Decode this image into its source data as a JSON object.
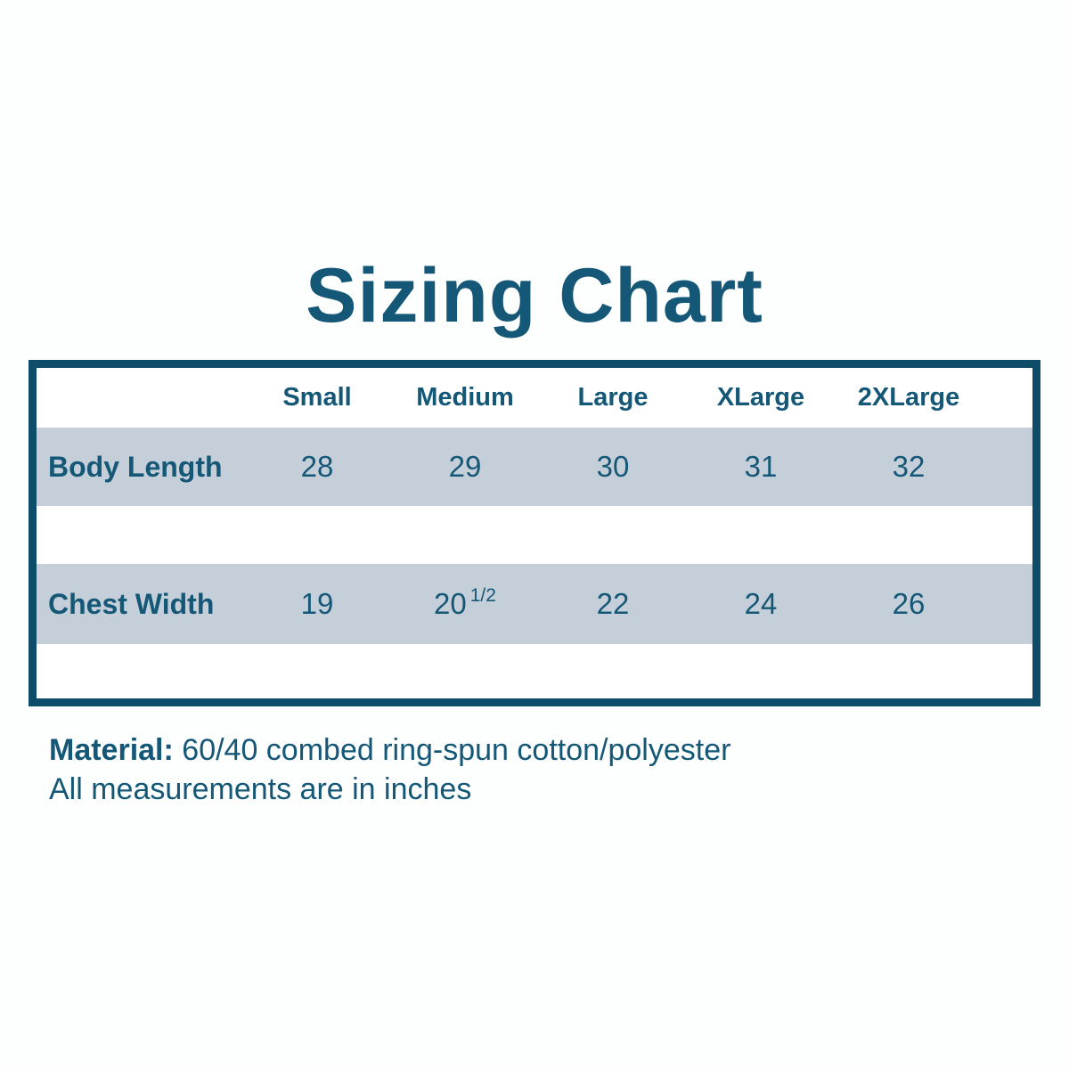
{
  "title": "Sizing Chart",
  "colors": {
    "text_teal": "#155776",
    "border_teal": "#0e4d6a",
    "row_background": "#c4cfd9",
    "page_background": "#fdfefe"
  },
  "table": {
    "columns": [
      "Small",
      "Medium",
      "Large",
      "XLarge",
      "2XLarge"
    ],
    "rows": [
      {
        "label": "Body Length",
        "values": [
          "28",
          "29",
          "30",
          "31",
          "32"
        ]
      },
      {
        "label": "Chest Width",
        "values": [
          "19",
          "20|1/2",
          "22",
          "24",
          "26"
        ]
      }
    ]
  },
  "footer": {
    "material_label": "Material:",
    "material_value": "60/40 combed ring-spun cotton/polyester",
    "note": "All measurements are in inches"
  },
  "chart_data": {
    "type": "table",
    "title": "Sizing Chart",
    "columns": [
      "Small",
      "Medium",
      "Large",
      "XLarge",
      "2XLarge"
    ],
    "rows": [
      {
        "label": "Body Length",
        "values": [
          28,
          29,
          30,
          31,
          32
        ]
      },
      {
        "label": "Chest Width",
        "values": [
          19,
          20.5,
          22,
          24,
          26
        ]
      }
    ],
    "units": "inches",
    "notes": "Material: 60/40 combed ring-spun cotton/polyester. All measurements are in inches."
  }
}
